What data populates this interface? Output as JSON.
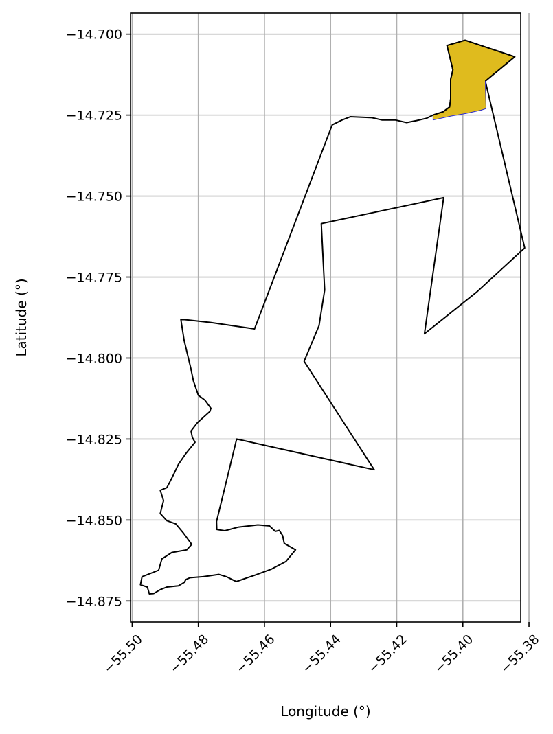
{
  "chart_data": {
    "type": "map",
    "title": "",
    "xlabel": "Longitude (°)",
    "ylabel": "Latitude (°)",
    "xlim": [
      -55.5005,
      -55.3825
    ],
    "ylim": [
      -14.8815,
      -14.6935
    ],
    "xticks": [
      -55.5,
      -55.48,
      -55.46,
      -55.44,
      -55.42,
      -55.4,
      -55.38
    ],
    "xtick_labels": [
      "−55.50",
      "−55.48",
      "−55.46",
      "−55.44",
      "−55.42",
      "−55.40",
      "−55.38"
    ],
    "yticks": [
      -14.7,
      -14.725,
      -14.75,
      -14.775,
      -14.8,
      -14.825,
      -14.85,
      -14.875
    ],
    "ytick_labels": [
      "−14.700",
      "−14.725",
      "−14.750",
      "−14.775",
      "−14.800",
      "−14.825",
      "−14.850",
      "−14.875"
    ],
    "grid": true,
    "colors": {
      "outline": "#000000",
      "highlight_fill": "#dfbb1e",
      "highlight_edge": "#2a2ad0",
      "grid": "#b0b0b0"
    },
    "outline": [
      [
        -55.4048,
        -14.7035
      ],
      [
        -55.3993,
        -14.7019
      ],
      [
        -55.3843,
        -14.707
      ],
      [
        -55.3932,
        -14.7145
      ],
      [
        -55.3813,
        -14.766
      ],
      [
        -55.3957,
        -14.7795
      ],
      [
        -55.4116,
        -14.7925
      ],
      [
        -55.4058,
        -14.7505
      ],
      [
        -55.4428,
        -14.7585
      ],
      [
        -55.4418,
        -14.779
      ],
      [
        -55.4435,
        -14.79
      ],
      [
        -55.448,
        -14.801
      ],
      [
        -55.4268,
        -14.8345
      ],
      [
        -55.4684,
        -14.825
      ],
      [
        -55.4745,
        -14.8505
      ],
      [
        -55.4744,
        -14.8529
      ],
      [
        -55.472,
        -14.8533
      ],
      [
        -55.468,
        -14.8522
      ],
      [
        -55.462,
        -14.8515
      ],
      [
        -55.4585,
        -14.8518
      ],
      [
        -55.4567,
        -14.8535
      ],
      [
        -55.4555,
        -14.8532
      ],
      [
        -55.4545,
        -14.8548
      ],
      [
        -55.454,
        -14.8572
      ],
      [
        -55.4506,
        -14.8592
      ],
      [
        -55.4535,
        -14.8628
      ],
      [
        -55.458,
        -14.8652
      ],
      [
        -55.4628,
        -14.867
      ],
      [
        -55.4652,
        -14.8678
      ],
      [
        -55.4685,
        -14.869
      ],
      [
        -55.4695,
        -14.8685
      ],
      [
        -55.4715,
        -14.8675
      ],
      [
        -55.4738,
        -14.8668
      ],
      [
        -55.4785,
        -14.8675
      ],
      [
        -55.4825,
        -14.8678
      ],
      [
        -55.4838,
        -14.8684
      ],
      [
        -55.4842,
        -14.8692
      ],
      [
        -55.486,
        -14.8703
      ],
      [
        -55.4895,
        -14.8707
      ],
      [
        -55.4915,
        -14.8715
      ],
      [
        -55.4935,
        -14.8727
      ],
      [
        -55.4948,
        -14.8728
      ],
      [
        -55.4954,
        -14.8707
      ],
      [
        -55.4975,
        -14.87
      ],
      [
        -55.497,
        -14.8675
      ],
      [
        -55.492,
        -14.8655
      ],
      [
        -55.491,
        -14.862
      ],
      [
        -55.488,
        -14.86
      ],
      [
        -55.4835,
        -14.8592
      ],
      [
        -55.482,
        -14.8575
      ],
      [
        -55.4845,
        -14.854
      ],
      [
        -55.4868,
        -14.8512
      ],
      [
        -55.4895,
        -14.8502
      ],
      [
        -55.4915,
        -14.848
      ],
      [
        -55.4905,
        -14.844
      ],
      [
        -55.4915,
        -14.8408
      ],
      [
        -55.4895,
        -14.84
      ],
      [
        -55.4885,
        -14.838
      ],
      [
        -55.4875,
        -14.836
      ],
      [
        -55.486,
        -14.8328
      ],
      [
        -55.4838,
        -14.8295
      ],
      [
        -55.481,
        -14.826
      ],
      [
        -55.4818,
        -14.8245
      ],
      [
        -55.4822,
        -14.8225
      ],
      [
        -55.4803,
        -14.82
      ],
      [
        -55.4765,
        -14.8165
      ],
      [
        -55.4762,
        -14.8155
      ],
      [
        -55.478,
        -14.813
      ],
      [
        -55.48,
        -14.8115
      ],
      [
        -55.4815,
        -14.807
      ],
      [
        -55.4823,
        -14.803
      ],
      [
        -55.483,
        -14.8
      ],
      [
        -55.4843,
        -14.7945
      ],
      [
        -55.4853,
        -14.788
      ],
      [
        -55.4763,
        -14.789
      ],
      [
        -55.463,
        -14.791
      ],
      [
        -55.4395,
        -14.728
      ],
      [
        -55.4365,
        -14.7265
      ],
      [
        -55.434,
        -14.7255
      ],
      [
        -55.4275,
        -14.7258
      ],
      [
        -55.4245,
        -14.7265
      ],
      [
        -55.4205,
        -14.7265
      ],
      [
        -55.417,
        -14.7273
      ],
      [
        -55.414,
        -14.7267
      ],
      [
        -55.411,
        -14.726
      ],
      [
        -55.409,
        -14.725
      ],
      [
        -55.406,
        -14.724
      ],
      [
        -55.404,
        -14.7225
      ],
      [
        -55.4037,
        -14.72
      ],
      [
        -55.4037,
        -14.714
      ],
      [
        -55.403,
        -14.711
      ],
      [
        -55.4048,
        -14.7035
      ]
    ],
    "highlight": [
      [
        -55.409,
        -14.7265
      ],
      [
        -55.4035,
        -14.7253
      ],
      [
        -55.399,
        -14.7245
      ],
      [
        -55.3945,
        -14.7235
      ],
      [
        -55.393,
        -14.723
      ],
      [
        -55.3932,
        -14.7145
      ],
      [
        -55.3843,
        -14.707
      ],
      [
        -55.3993,
        -14.7019
      ],
      [
        -55.4048,
        -14.7035
      ],
      [
        -55.403,
        -14.711
      ],
      [
        -55.4037,
        -14.714
      ],
      [
        -55.4037,
        -14.72
      ],
      [
        -55.404,
        -14.7225
      ],
      [
        -55.406,
        -14.724
      ],
      [
        -55.409,
        -14.725
      ]
    ]
  }
}
